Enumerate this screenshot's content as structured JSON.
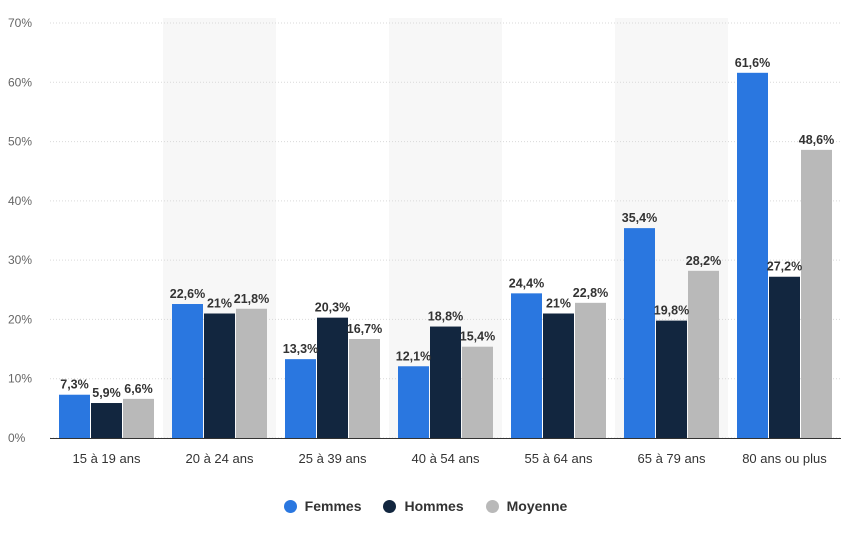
{
  "chart_data": {
    "type": "bar",
    "categories": [
      "15 à 19 ans",
      "20 à 24 ans",
      "25 à 39 ans",
      "40 à 54 ans",
      "55 à 64 ans",
      "65 à 79 ans",
      "80 ans ou plus"
    ],
    "series": [
      {
        "name": "Femmes",
        "color": "#2a77e0",
        "values": [
          7.3,
          22.6,
          13.3,
          12.1,
          24.4,
          35.4,
          61.6
        ],
        "labels": [
          "7,3%",
          "22,6%",
          "13,3%",
          "12,1%",
          "24,4%",
          "35,4%",
          "61,6%"
        ]
      },
      {
        "name": "Hommes",
        "color": "#12263f",
        "values": [
          5.9,
          21,
          20.3,
          18.8,
          21,
          19.8,
          27.2
        ],
        "labels": [
          "5,9%",
          "21%",
          "20,3%",
          "18,8%",
          "21%",
          "19,8%",
          "27,2%"
        ]
      },
      {
        "name": "Moyenne",
        "color": "#b9b9b9",
        "values": [
          6.6,
          21.8,
          16.7,
          15.4,
          22.8,
          28.2,
          48.6
        ],
        "labels": [
          "6,6%",
          "21,8%",
          "16,7%",
          "15,4%",
          "22,8%",
          "28,2%",
          "48,6%"
        ]
      }
    ],
    "ylim": [
      0,
      70
    ],
    "yticks": [
      "0%",
      "10%",
      "20%",
      "30%",
      "40%",
      "50%",
      "60%",
      "70%"
    ],
    "grid": true,
    "legend_position": "bottom-center",
    "title": "",
    "xlabel": "",
    "ylabel": ""
  }
}
